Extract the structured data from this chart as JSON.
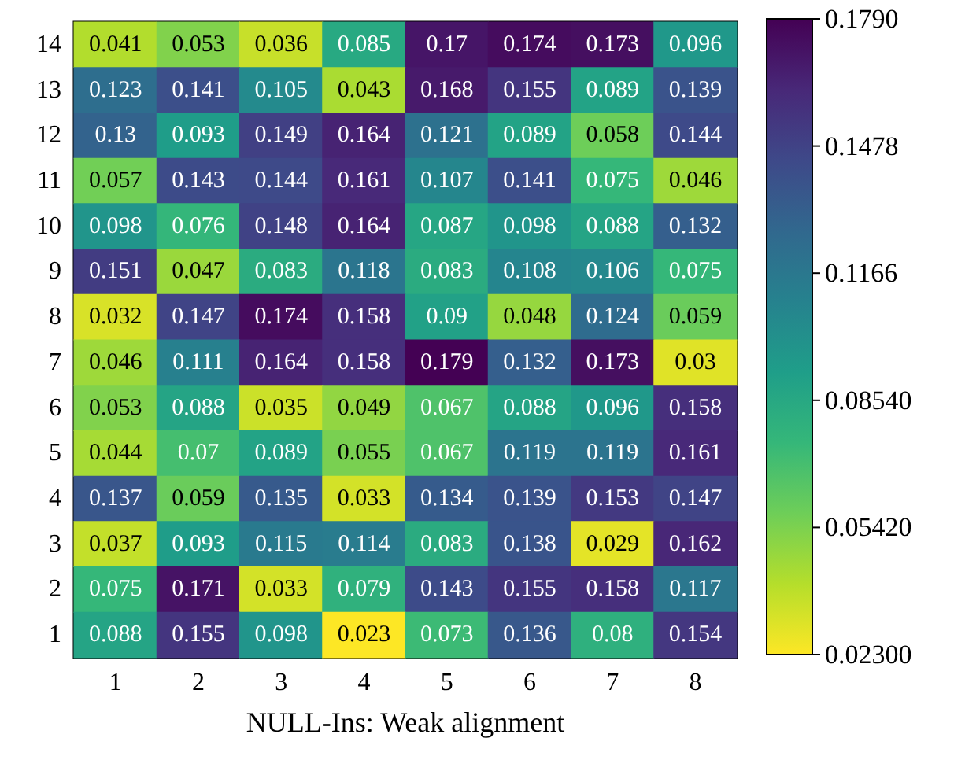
{
  "chart_data": {
    "type": "heatmap",
    "xlabel": "NULL-Ins: Weak alignment",
    "categories": [
      "1",
      "2",
      "3",
      "4",
      "5",
      "6",
      "7",
      "8"
    ],
    "y_categories": [
      "14",
      "13",
      "12",
      "11",
      "10",
      "9",
      "8",
      "7",
      "6",
      "5",
      "4",
      "3",
      "2",
      "1"
    ],
    "cells": [
      [
        0.041,
        0.053,
        0.036,
        0.085,
        0.17,
        0.174,
        0.173,
        0.096
      ],
      [
        0.123,
        0.141,
        0.105,
        0.043,
        0.168,
        0.155,
        0.089,
        0.139
      ],
      [
        0.13,
        0.093,
        0.149,
        0.164,
        0.121,
        0.089,
        0.058,
        0.144
      ],
      [
        0.057,
        0.143,
        0.144,
        0.161,
        0.107,
        0.141,
        0.075,
        0.046
      ],
      [
        0.098,
        0.076,
        0.148,
        0.164,
        0.087,
        0.098,
        0.088,
        0.132
      ],
      [
        0.151,
        0.047,
        0.083,
        0.118,
        0.083,
        0.108,
        0.106,
        0.075
      ],
      [
        0.032,
        0.147,
        0.174,
        0.158,
        0.09,
        0.048,
        0.124,
        0.059
      ],
      [
        0.046,
        0.111,
        0.164,
        0.158,
        0.179,
        0.132,
        0.173,
        0.03
      ],
      [
        0.053,
        0.088,
        0.035,
        0.049,
        0.067,
        0.088,
        0.096,
        0.158
      ],
      [
        0.044,
        0.07,
        0.089,
        0.055,
        0.067,
        0.119,
        0.119,
        0.161
      ],
      [
        0.137,
        0.059,
        0.135,
        0.033,
        0.134,
        0.139,
        0.153,
        0.147
      ],
      [
        0.037,
        0.093,
        0.115,
        0.114,
        0.083,
        0.138,
        0.029,
        0.162
      ],
      [
        0.075,
        0.171,
        0.033,
        0.079,
        0.143,
        0.155,
        0.158,
        0.117
      ],
      [
        0.088,
        0.155,
        0.098,
        0.023,
        0.073,
        0.136,
        0.08,
        0.154
      ]
    ],
    "clim": [
      0.023,
      0.179
    ],
    "cticks": [
      {
        "value": 0.023,
        "label": "0.02300"
      },
      {
        "value": 0.0542,
        "label": "0.05420"
      },
      {
        "value": 0.0854,
        "label": "0.08540"
      },
      {
        "value": 0.1166,
        "label": "0.1166"
      },
      {
        "value": 0.1478,
        "label": "0.1478"
      },
      {
        "value": 0.179,
        "label": "0.1790"
      }
    ],
    "data_labels": true
  }
}
